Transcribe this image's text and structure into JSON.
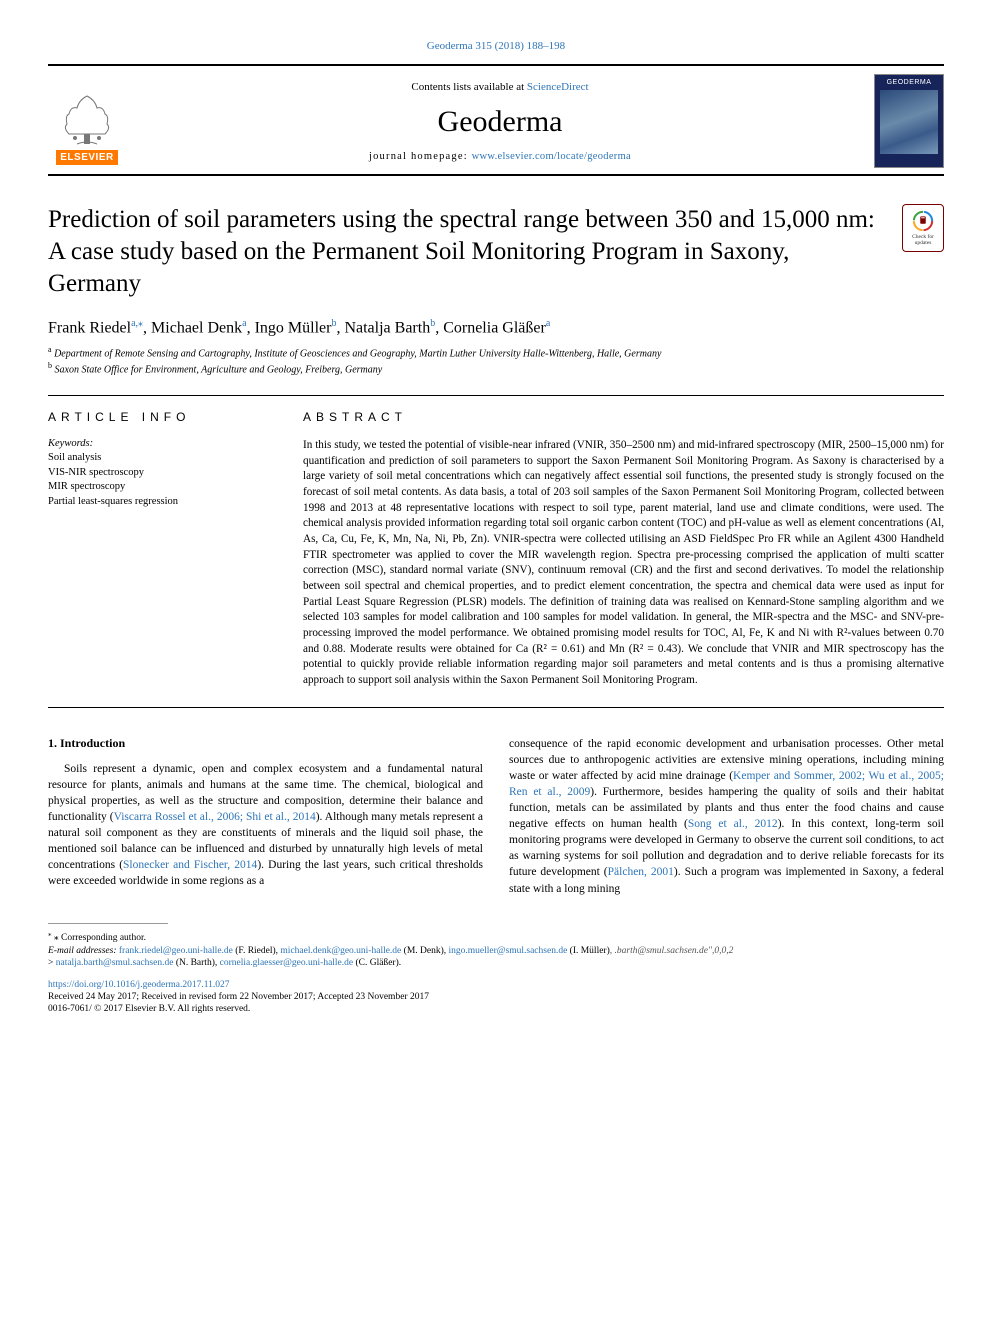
{
  "header": {
    "citation": "Geoderma 315 (2018) 188–198",
    "contents_prefix": "Contents lists available at ",
    "contents_link": "ScienceDirect",
    "journal": "Geoderma",
    "homepage_prefix": "journal homepage: ",
    "homepage_url": "www.elsevier.com/locate/geoderma",
    "publisher_logo_text": "ELSEVIER",
    "cover_title": "GEODERMA",
    "cover_bg_color": "#17245a"
  },
  "check_updates": {
    "label": "Check for updates",
    "ring_colors": [
      "#d32f2f",
      "#f9a825",
      "#43a047",
      "#1e88e5"
    ]
  },
  "title": "Prediction of soil parameters using the spectral range between 350 and 15,000 nm: A case study based on the Permanent Soil Monitoring Program in Saxony, Germany",
  "authors": [
    {
      "name": "Frank Riedel",
      "marks": "a,⁎"
    },
    {
      "name": "Michael Denk",
      "marks": "a"
    },
    {
      "name": "Ingo Müller",
      "marks": "b"
    },
    {
      "name": "Natalja Barth",
      "marks": "b"
    },
    {
      "name": "Cornelia Gläßer",
      "marks": "a"
    }
  ],
  "affiliations": [
    {
      "mark": "a",
      "text": "Department of Remote Sensing and Cartography, Institute of Geosciences and Geography, Martin Luther University Halle-Wittenberg, Halle, Germany"
    },
    {
      "mark": "b",
      "text": "Saxon State Office for Environment, Agriculture and Geology, Freiberg, Germany"
    }
  ],
  "article_info": {
    "heading": "ARTICLE INFO",
    "keywords_head": "Keywords:",
    "keywords": [
      "Soil analysis",
      "VIS-NIR spectroscopy",
      "MIR spectroscopy",
      "Partial least-squares regression"
    ]
  },
  "abstract": {
    "heading": "ABSTRACT",
    "text": "In this study, we tested the potential of visible-near infrared (VNIR, 350–2500 nm) and mid-infrared spectroscopy (MIR, 2500–15,000 nm) for quantification and prediction of soil parameters to support the Saxon Permanent Soil Monitoring Program. As Saxony is characterised by a large variety of soil metal concentrations which can negatively affect essential soil functions, the presented study is strongly focused on the forecast of soil metal contents. As data basis, a total of 203 soil samples of the Saxon Permanent Soil Monitoring Program, collected between 1998 and 2013 at 48 representative locations with respect to soil type, parent material, land use and climate conditions, were used. The chemical analysis provided information regarding total soil organic carbon content (TOC) and pH-value as well as element concentrations (Al, As, Ca, Cu, Fe, K, Mn, Na, Ni, Pb, Zn). VNIR-spectra were collected utilising an ASD FieldSpec Pro FR while an Agilent 4300 Handheld FTIR spectrometer was applied to cover the MIR wavelength region. Spectra pre-processing comprised the application of multi scatter correction (MSC), standard normal variate (SNV), continuum removal (CR) and the first and second derivatives. To model the relationship between soil spectral and chemical properties, and to predict element concentration, the spectra and chemical data were used as input for Partial Least Square Regression (PLSR) models. The definition of training data was realised on Kennard-Stone sampling algorithm and we selected 103 samples for model calibration and 100 samples for model validation. In general, the MIR-spectra and the MSC- and SNV-pre-processing improved the model performance. We obtained promising model results for TOC, Al, Fe, K and Ni with R²-values between 0.70 and 0.88. Moderate results were obtained for Ca (R² = 0.61) and Mn (R² = 0.43). We conclude that VNIR and MIR spectroscopy has the potential to quickly provide reliable information regarding major soil parameters and metal contents and is thus a promising alternative approach to support soil analysis within the Saxon Permanent Soil Monitoring Program."
  },
  "body": {
    "section_number": "1.",
    "section_title": "Introduction",
    "col1_para": "Soils represent a dynamic, open and complex ecosystem and a fundamental natural resource for plants, animals and humans at the same time. The chemical, biological and physical properties, as well as the structure and composition, determine their balance and functionality (",
    "col1_cite1": "Viscarra Rossel et al., 2006; Shi et al., 2014",
    "col1_after1": "). Although many metals represent a natural soil component as they are constituents of minerals and the liquid soil phase, the mentioned soil balance can be influenced and disturbed by unnaturally high levels of metal concentrations (",
    "col1_cite2": "Slonecker and Fischer, 2014",
    "col1_after2": "). During the last years, such critical thresholds were exceeded worldwide in some regions as a",
    "col2_para": "consequence of the rapid economic development and urbanisation processes. Other metal sources due to anthropogenic activities are extensive mining operations, including mining waste or water affected by acid mine drainage (",
    "col2_cite1": "Kemper and Sommer, 2002; Wu et al., 2005; Ren et al., 2009",
    "col2_after1": "). Furthermore, besides hampering the quality of soils and their habitat function, metals can be assimilated by plants and thus enter the food chains and cause negative effects on human health (",
    "col2_cite2": "Song et al., 2012",
    "col2_after2": "). In this context, long-term soil monitoring programs were developed in Germany to observe the current soil conditions, to act as warning systems for soil pollution and degradation and to derive reliable forecasts for its future development (",
    "col2_cite3": "Pälchen, 2001",
    "col2_after3": "). Such a program was implemented in Saxony, a federal state with a long mining"
  },
  "footer": {
    "corresponding": "⁎ Corresponding author.",
    "email_label": "E-mail addresses: ",
    "emails": [
      {
        "addr": "frank.riedel@geo.uni-halle.de",
        "who": "(F. Riedel)"
      },
      {
        "addr": "michael.denk@geo.uni-halle.de",
        "who": "(M. Denk)"
      },
      {
        "addr": "ingo.mueller@smul.sachsen.de",
        "who": "(I. Müller)"
      }
    ],
    "gray_frag": ", .barth@smul.sachsen.de\",0,0,2",
    "emails2_prefix": "> ",
    "emails2": [
      {
        "addr": "natalja.barth@smul.sachsen.de",
        "who": "(N. Barth)"
      },
      {
        "addr": "cornelia.glaesser@geo.uni-halle.de",
        "who": "(C. Gläßer)"
      }
    ],
    "doi": "https://doi.org/10.1016/j.geoderma.2017.11.027",
    "received": "Received 24 May 2017; Received in revised form 22 November 2017; Accepted 23 November 2017",
    "copyright": "0016-7061/ © 2017 Elsevier B.V. All rights reserved."
  },
  "colors": {
    "link": "#2e75b6",
    "elsevier_orange": "#ff7800",
    "text": "#000000"
  }
}
